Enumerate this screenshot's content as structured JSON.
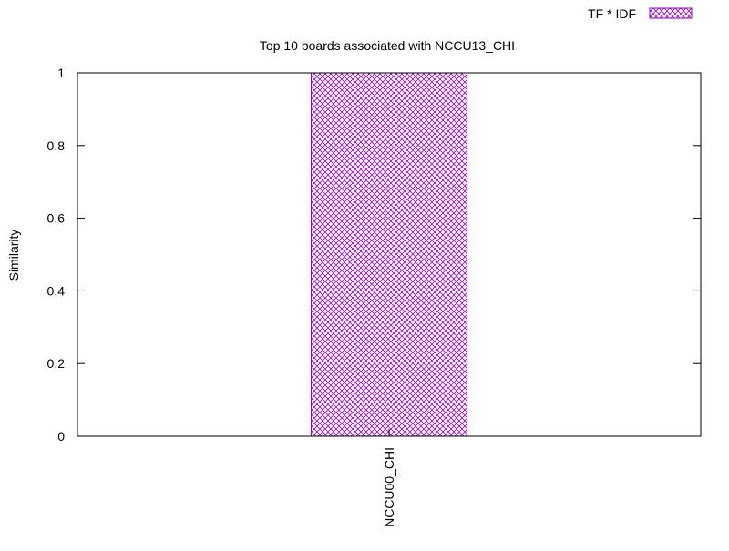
{
  "chart_data": {
    "type": "bar",
    "title": "Top 10 boards associated with NCCU13_CHI",
    "xlabel": "",
    "ylabel": "Similarity",
    "categories": [
      "NCCU00_CHI"
    ],
    "series": [
      {
        "name": "TF * IDF",
        "values": [
          1
        ],
        "color": "#9400d3",
        "fill": "crosshatch"
      }
    ],
    "ylim": [
      0,
      1
    ],
    "yticks": [
      "0",
      "0.2",
      "0.4",
      "0.6",
      "0.8",
      "1"
    ],
    "grid": false,
    "legend": "top-right"
  }
}
